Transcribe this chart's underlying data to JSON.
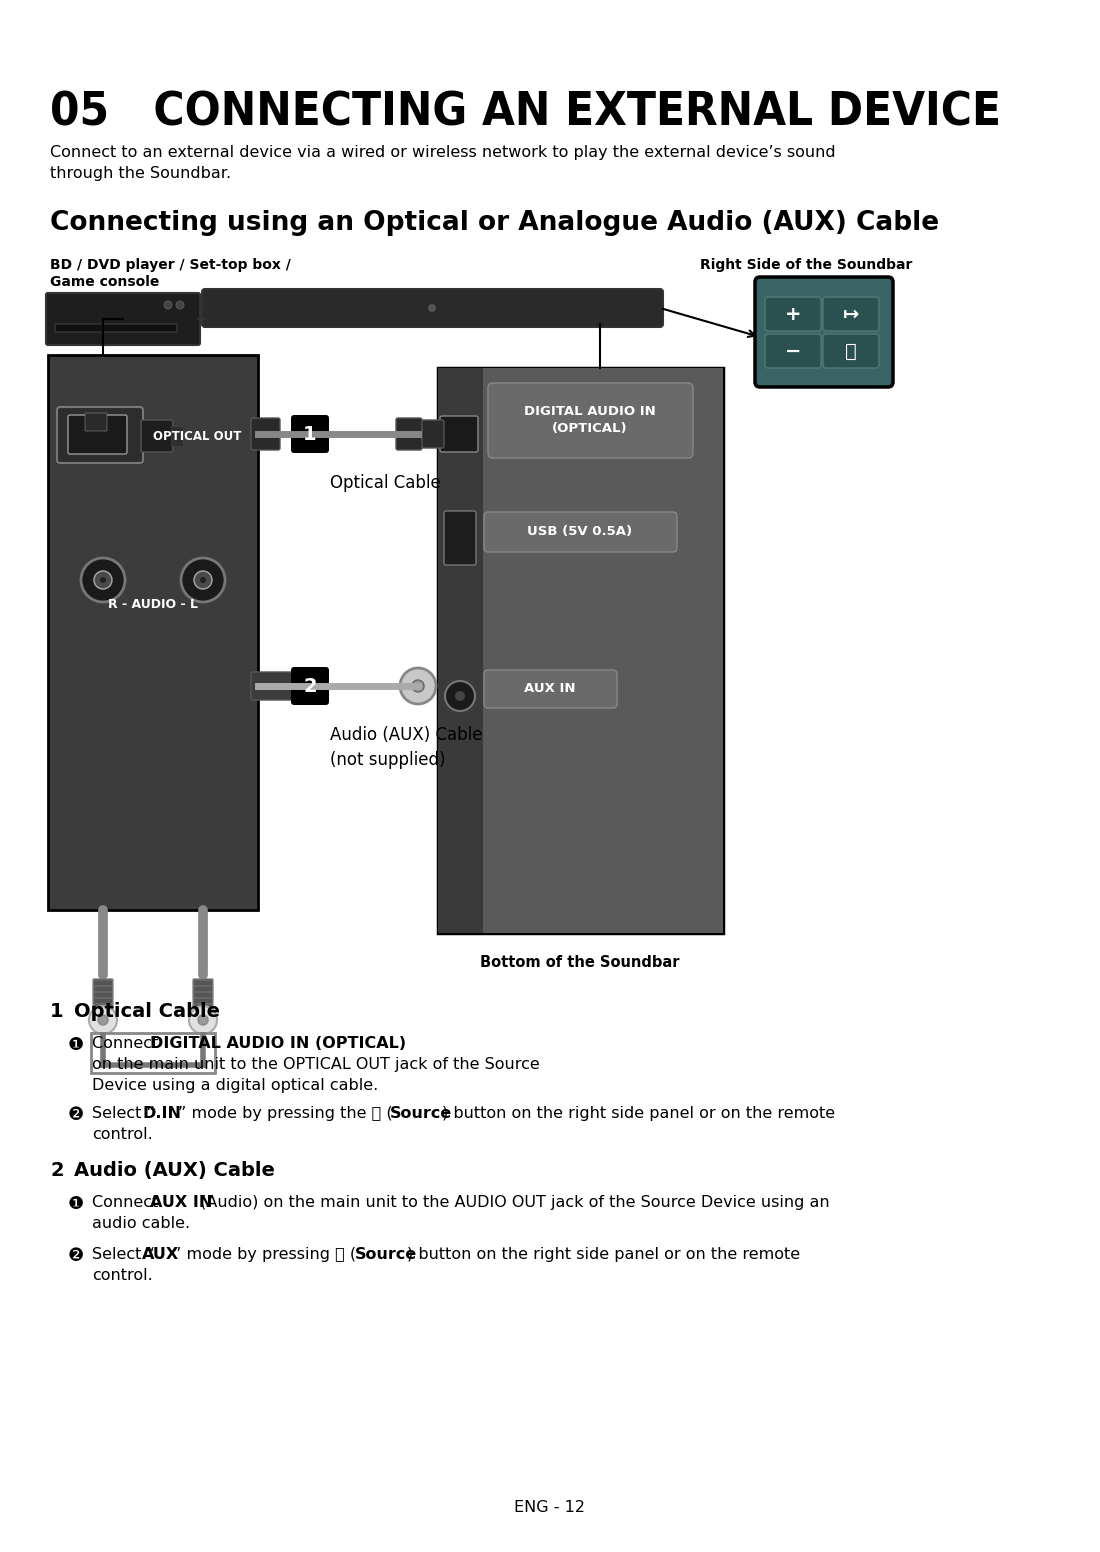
{
  "title": "05   CONNECTING AN EXTERNAL DEVICE",
  "intro_text": "Connect to an external device via a wired or wireless network to play the external device’s sound\nthrough the Soundbar.",
  "section_title": "Connecting using an Optical or Analogue Audio (AUX) Cable",
  "label_bd": "BD / DVD player / Set-top box /",
  "label_gc": "Game console",
  "label_right_side": "Right Side of the Soundbar",
  "label_optical_out": "OPTICAL OUT",
  "label_optical_cable": "Optical Cable",
  "label_audio_cable": "Audio (AUX) Cable\n(not supplied)",
  "label_r_audio_l": "R - AUDIO - L",
  "label_digital_audio": "DIGITAL AUDIO IN\n(OPTICAL)",
  "label_usb": "USB (5V 0.5A)",
  "label_aux_in": "AUX IN",
  "label_bottom": "Bottom of the Soundbar",
  "footer": "ENG - 12",
  "bg_color": "#ffffff",
  "text_color": "#000000"
}
